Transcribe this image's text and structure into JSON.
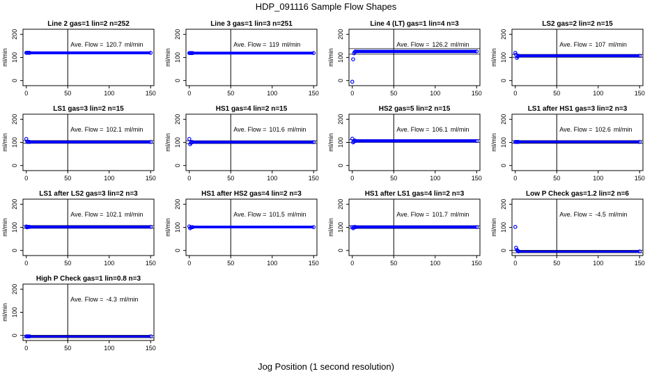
{
  "title": "HDP_091116  Sample Flow Shapes",
  "xlabel": "Jog Position (1 second resolution)",
  "ylabel": "ml/min",
  "avg_prefix": "Ave. Flow =",
  "avg_unit": "ml/min",
  "colors": {
    "points": "#0000ff",
    "axes": "#000000"
  },
  "chart_data": [
    {
      "type": "scatter",
      "title": "Line 2 gas=1 lin=2 n=252",
      "ave_flow": "120.7",
      "base": 120,
      "start": [
        120,
        120,
        120,
        120,
        120
      ],
      "band": [
        117,
        123
      ],
      "ylim": [
        -22,
        222
      ],
      "xlim": [
        -4,
        154
      ],
      "yticks": [
        0,
        100,
        200
      ],
      "xticks": [
        0,
        50,
        100,
        150
      ],
      "vline": 50,
      "hlines": []
    },
    {
      "type": "scatter",
      "title": "Line 3 gas=1 lin=3 n=251",
      "ave_flow": "119",
      "base": 119,
      "start": [
        119,
        119,
        119,
        119,
        119
      ],
      "band": [
        116,
        122
      ],
      "ylim": [
        -22,
        222
      ],
      "xlim": [
        -4,
        154
      ],
      "yticks": [
        0,
        100,
        200
      ],
      "xticks": [
        0,
        50,
        100,
        150
      ],
      "vline": 50,
      "hlines": []
    },
    {
      "type": "scatter",
      "title": "Line 4 (LT) gas=1 lin=4 n=3",
      "ave_flow": "126.2",
      "base": 126,
      "start": [
        -5,
        92,
        118,
        124,
        126
      ],
      "band": [
        122,
        130
      ],
      "ylim": [
        -22,
        222
      ],
      "xlim": [
        -4,
        154
      ],
      "yticks": [
        0,
        100,
        200
      ],
      "xticks": [
        0,
        50,
        100,
        150
      ],
      "vline": 50,
      "hlines": [
        114,
        138
      ]
    },
    {
      "type": "scatter",
      "title": "LS2 gas=2 lin=2 n=15",
      "ave_flow": "107",
      "base": 107,
      "start": [
        120,
        112,
        98,
        104,
        107
      ],
      "band": [
        104,
        110
      ],
      "ylim": [
        -22,
        222
      ],
      "xlim": [
        -4,
        154
      ],
      "yticks": [
        0,
        100,
        200
      ],
      "xticks": [
        0,
        50,
        100,
        150
      ],
      "vline": 50,
      "hlines": [
        101,
        113
      ]
    },
    {
      "type": "scatter",
      "title": "LS1 gas=3 lin=2 n=15",
      "ave_flow": "102.1",
      "base": 102,
      "start": [
        115,
        104,
        102,
        102,
        102
      ],
      "band": [
        99,
        105
      ],
      "ylim": [
        -22,
        222
      ],
      "xlim": [
        -4,
        154
      ],
      "yticks": [
        0,
        100,
        200
      ],
      "xticks": [
        0,
        50,
        100,
        150
      ],
      "vline": 50,
      "hlines": [
        96,
        108
      ]
    },
    {
      "type": "scatter",
      "title": "HS1 gas=4 lin=2 n=15",
      "ave_flow": "101.6",
      "base": 101,
      "start": [
        115,
        92,
        98,
        102,
        101
      ],
      "band": [
        98,
        104
      ],
      "ylim": [
        -22,
        222
      ],
      "xlim": [
        -4,
        154
      ],
      "yticks": [
        0,
        100,
        200
      ],
      "xticks": [
        0,
        50,
        100,
        150
      ],
      "vline": 50,
      "hlines": [
        95,
        107
      ]
    },
    {
      "type": "scatter",
      "title": "HS2 gas=5 lin=2 n=15",
      "ave_flow": "106.1",
      "base": 106,
      "start": [
        116,
        100,
        104,
        108,
        106
      ],
      "band": [
        103,
        110
      ],
      "ylim": [
        -22,
        222
      ],
      "xlim": [
        -4,
        154
      ],
      "yticks": [
        0,
        100,
        200
      ],
      "xticks": [
        0,
        50,
        100,
        150
      ],
      "vline": 50,
      "hlines": [
        100,
        112
      ]
    },
    {
      "type": "scatter",
      "title": "LS1 after HS1 gas=3 lin=2 n=3",
      "ave_flow": "102.6",
      "base": 102,
      "start": [
        102,
        102,
        102,
        102,
        102
      ],
      "band": [
        100,
        105
      ],
      "ylim": [
        -22,
        222
      ],
      "xlim": [
        -4,
        154
      ],
      "yticks": [
        0,
        100,
        200
      ],
      "xticks": [
        0,
        50,
        100,
        150
      ],
      "vline": 50,
      "hlines": [
        96,
        108
      ]
    },
    {
      "type": "scatter",
      "title": "LS1 after LS2 gas=3 lin=2 n=3",
      "ave_flow": "102.1",
      "base": 102,
      "start": [
        104,
        100,
        102,
        102,
        102
      ],
      "band": [
        99,
        105
      ],
      "ylim": [
        -22,
        222
      ],
      "xlim": [
        -4,
        154
      ],
      "yticks": [
        0,
        100,
        200
      ],
      "xticks": [
        0,
        50,
        100,
        150
      ],
      "vline": 50,
      "hlines": [
        96,
        108
      ]
    },
    {
      "type": "scatter",
      "title": "HS1 after HS2 gas=4 lin=2 n=3",
      "ave_flow": "101.5",
      "base": 101,
      "start": [
        104,
        96,
        100,
        101,
        101
      ],
      "band": [
        99,
        104
      ],
      "ylim": [
        -22,
        222
      ],
      "xlim": [
        -4,
        154
      ],
      "yticks": [
        0,
        100,
        200
      ],
      "xticks": [
        0,
        50,
        100,
        150
      ],
      "vline": 50,
      "hlines": []
    },
    {
      "type": "scatter",
      "title": "HS1 after LS1 gas=4 lin=2 n=3",
      "ave_flow": "101.7",
      "base": 101,
      "start": [
        101,
        96,
        100,
        102,
        101
      ],
      "band": [
        98,
        105
      ],
      "ylim": [
        -22,
        222
      ],
      "xlim": [
        -4,
        154
      ],
      "yticks": [
        0,
        100,
        200
      ],
      "xticks": [
        0,
        50,
        100,
        150
      ],
      "vline": 50,
      "hlines": [
        95,
        107
      ]
    },
    {
      "type": "scatter",
      "title": "Low P Check gas=1.2 lin=2 n=6",
      "ave_flow": "-4.5",
      "base": -4,
      "start": [
        102,
        12,
        2,
        -2,
        -4
      ],
      "band": [
        -6,
        -3
      ],
      "ylim": [
        -22,
        222
      ],
      "xlim": [
        -4,
        154
      ],
      "yticks": [
        0,
        100,
        200
      ],
      "xticks": [
        0,
        50,
        100,
        150
      ],
      "vline": 50,
      "hlines": [
        -10,
        1
      ]
    },
    {
      "type": "scatter",
      "title": "High P Check gas=1 lin=0.8 n=3",
      "ave_flow": "-4.3",
      "base": -4,
      "start": [
        -4,
        -4,
        -4,
        -4,
        -4
      ],
      "band": [
        -6,
        -3
      ],
      "ylim": [
        -22,
        222
      ],
      "xlim": [
        -4,
        154
      ],
      "yticks": [
        0,
        100,
        200
      ],
      "xticks": [
        0,
        50,
        100,
        150
      ],
      "vline": 50,
      "hlines": [
        -10,
        1
      ]
    }
  ]
}
